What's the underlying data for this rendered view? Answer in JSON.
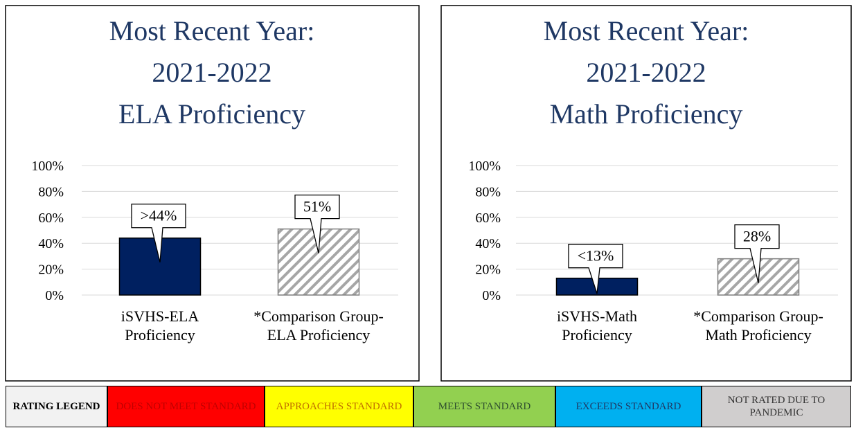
{
  "chart_data": [
    {
      "type": "bar",
      "title": [
        "Most Recent Year:",
        "2021-2022",
        "ELA Proficiency"
      ],
      "categories": [
        "iSVHS-ELA Proficiency",
        "*Comparison Group-ELA Proficiency"
      ],
      "values": [
        44,
        51
      ],
      "value_labels": [
        ">44%",
        "51%"
      ],
      "colors": [
        "#002060",
        "#a6a6a6"
      ],
      "hatched": [
        false,
        true
      ],
      "ylim": [
        0,
        100
      ],
      "yticks": [
        {
          "value": 0,
          "label": "0%"
        },
        {
          "value": 20,
          "label": "20%"
        },
        {
          "value": 40,
          "label": "40%"
        },
        {
          "value": 60,
          "label": "60%"
        },
        {
          "value": 80,
          "label": "80%"
        },
        {
          "value": 100,
          "label": "100%"
        }
      ],
      "grid": true
    },
    {
      "type": "bar",
      "title": [
        "Most Recent Year:",
        "2021-2022",
        "Math Proficiency"
      ],
      "categories": [
        "iSVHS-Math Proficiency",
        "*Comparison Group-Math Proficiency"
      ],
      "values": [
        13,
        28
      ],
      "value_labels": [
        "<13%",
        "28%"
      ],
      "colors": [
        "#002060",
        "#a6a6a6"
      ],
      "hatched": [
        false,
        true
      ],
      "ylim": [
        0,
        100
      ],
      "yticks": [
        {
          "value": 0,
          "label": "0%"
        },
        {
          "value": 20,
          "label": "20%"
        },
        {
          "value": 40,
          "label": "40%"
        },
        {
          "value": 60,
          "label": "60%"
        },
        {
          "value": 80,
          "label": "80%"
        },
        {
          "value": 100,
          "label": "100%"
        }
      ],
      "grid": true
    }
  ],
  "rating_legend": {
    "title": "RATING LEGEND",
    "items": [
      {
        "label": "DOES NOT MEET STANDARD",
        "color": "#ff0000",
        "text_color": "#c00000"
      },
      {
        "label": "APPROACHES STANDARD",
        "color": "#ffff00",
        "text_color": "#c07000"
      },
      {
        "label": "MEETS STANDARD",
        "color": "#92d050",
        "text_color": "#2f4f2f"
      },
      {
        "label": "EXCEEDS STANDARD",
        "color": "#00b0f0",
        "text_color": "#1f3864"
      },
      {
        "label": "NOT RATED DUE TO PANDEMIC",
        "color": "#d0cece",
        "text_color": "#333333"
      }
    ]
  }
}
